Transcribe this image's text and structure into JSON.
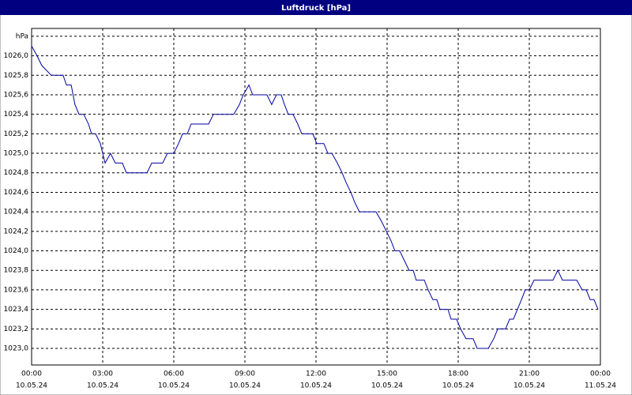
{
  "chart_data": {
    "type": "line",
    "title": "Luftdruck [hPa]",
    "x": [
      0,
      0.23,
      0.43,
      0.83,
      1.33,
      1.47,
      1.67,
      1.83,
      2,
      2.2,
      2.4,
      2.53,
      2.7,
      2.9,
      3.1,
      3.33,
      3.53,
      3.83,
      4,
      4.87,
      5.07,
      5.53,
      5.73,
      6,
      6.2,
      6.37,
      6.57,
      6.73,
      7.47,
      7.67,
      8.53,
      8.77,
      8.93,
      9.17,
      9.33,
      9.93,
      10.13,
      10.33,
      10.53,
      10.67,
      10.83,
      11.03,
      11.23,
      11.4,
      11.87,
      12.03,
      12.33,
      12.5,
      12.67,
      12.9,
      13.1,
      13.27,
      13.47,
      13.63,
      13.83,
      14.53,
      14.77,
      14.97,
      15.17,
      15.33,
      15.53,
      15.73,
      15.93,
      16.1,
      16.23,
      16.57,
      16.73,
      16.93,
      17.1,
      17.23,
      17.57,
      17.7,
      17.93,
      18.1,
      18.33,
      18.63,
      18.8,
      19.27,
      19.5,
      19.67,
      20,
      20.17,
      20.33,
      20.5,
      20.67,
      20.83,
      21,
      21.2,
      22,
      22.2,
      22.4,
      23,
      23.23,
      23.4,
      23.57,
      23.73,
      23.9
    ],
    "series": [
      {
        "color": "#0000a0",
        "values": [
          1026.1,
          1026,
          1025.9,
          1025.8,
          1025.8,
          1025.7,
          1025.7,
          1025.5,
          1025.4,
          1025.4,
          1025.3,
          1025.2,
          1025.2,
          1025.1,
          1024.9,
          1025,
          1024.9,
          1024.9,
          1024.8,
          1024.8,
          1024.9,
          1024.9,
          1025,
          1025,
          1025.1,
          1025.2,
          1025.2,
          1025.3,
          1025.3,
          1025.4,
          1025.4,
          1025.5,
          1025.6,
          1025.7,
          1025.6,
          1025.6,
          1025.5,
          1025.6,
          1025.6,
          1025.5,
          1025.4,
          1025.4,
          1025.3,
          1025.2,
          1025.2,
          1025.1,
          1025.1,
          1025,
          1025,
          1024.9,
          1024.8,
          1024.7,
          1024.6,
          1024.5,
          1024.4,
          1024.4,
          1024.3,
          1024.2,
          1024.1,
          1024,
          1024,
          1023.9,
          1023.8,
          1023.8,
          1023.7,
          1023.7,
          1023.6,
          1023.5,
          1023.5,
          1023.4,
          1023.4,
          1023.3,
          1023.3,
          1023.2,
          1023.1,
          1023.1,
          1023,
          1023,
          1023.1,
          1023.2,
          1023.2,
          1023.3,
          1023.3,
          1023.4,
          1023.5,
          1023.6,
          1023.6,
          1023.7,
          1023.7,
          1023.8,
          1023.7,
          1023.7,
          1023.6,
          1023.6,
          1023.5,
          1023.5,
          1023.4
        ]
      }
    ],
    "xlim": [
      0,
      24
    ],
    "xticks": [
      {
        "value": 0,
        "label": "00:00"
      },
      {
        "value": 3,
        "label": "03:00"
      },
      {
        "value": 6,
        "label": "06:00"
      },
      {
        "value": 9,
        "label": "09:00"
      },
      {
        "value": 12,
        "label": "12:00"
      },
      {
        "value": 15,
        "label": "15:00"
      },
      {
        "value": 18,
        "label": "18:00"
      },
      {
        "value": 21,
        "label": "21:00"
      },
      {
        "value": 24,
        "label": "00:00"
      }
    ],
    "x_dates": [
      "10.05.24",
      "10.05.24",
      "10.05.24",
      "10.05.24",
      "10.05.24",
      "10.05.24",
      "10.05.24",
      "10.05.24",
      "11.05.24"
    ],
    "ylim": [
      1022.83,
      1026.28
    ],
    "yticks": [
      {
        "value": 1023,
        "label": "1023,0"
      },
      {
        "value": 1023.2,
        "label": "1023,2"
      },
      {
        "value": 1023.4,
        "label": "1023,4"
      },
      {
        "value": 1023.6,
        "label": "1023,6"
      },
      {
        "value": 1023.8,
        "label": "1023,8"
      },
      {
        "value": 1024,
        "label": "1024,0"
      },
      {
        "value": 1024.2,
        "label": "1024,2"
      },
      {
        "value": 1024.4,
        "label": "1024,4"
      },
      {
        "value": 1024.6,
        "label": "1024,6"
      },
      {
        "value": 1024.8,
        "label": "1024,8"
      },
      {
        "value": 1025,
        "label": "1025,0"
      },
      {
        "value": 1025.2,
        "label": "1025,2"
      },
      {
        "value": 1025.4,
        "label": "1025,4"
      },
      {
        "value": 1025.6,
        "label": "1025,6"
      },
      {
        "value": 1025.8,
        "label": "1025,8"
      },
      {
        "value": 1026,
        "label": "1026,0"
      },
      {
        "value": 1026.2,
        "label": "hPa"
      }
    ],
    "grid": true
  }
}
